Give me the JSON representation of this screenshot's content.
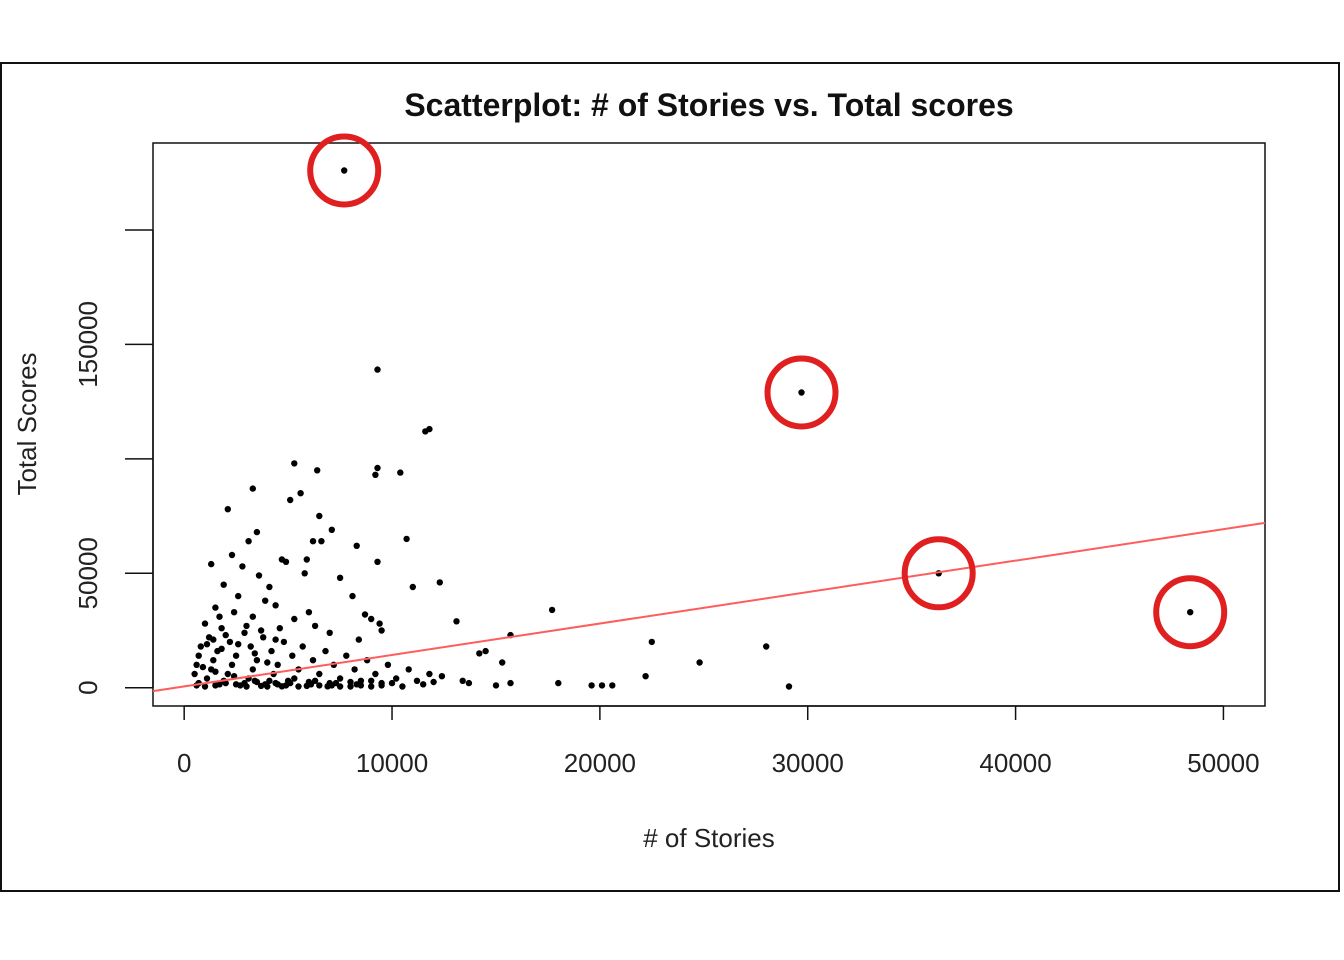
{
  "chart_data": {
    "type": "scatter",
    "title": "Scatterplot: # of Stories vs. Total scores",
    "xlabel": "# of Stories",
    "ylabel": "Total Scores",
    "xlim": [
      -1500,
      52000
    ],
    "ylim": [
      -8000,
      238000
    ],
    "x_ticks": [
      0,
      10000,
      20000,
      30000,
      40000,
      50000
    ],
    "y_ticks": [
      0,
      50000,
      100000,
      150000,
      200000
    ],
    "y_tick_labels": [
      "0",
      "50000",
      "",
      "150000",
      ""
    ],
    "grid": false,
    "colors": {
      "points": "#000000",
      "fit_line": "#ff5c5c",
      "highlight": "#e02020"
    },
    "fit_line": {
      "x": [
        -1500,
        52000
      ],
      "y": [
        -1500,
        72000
      ]
    },
    "highlighted_points": [
      {
        "x": 7700,
        "y": 226000
      },
      {
        "x": 29700,
        "y": 129000
      },
      {
        "x": 36300,
        "y": 50000
      },
      {
        "x": 48400,
        "y": 33000
      }
    ],
    "series": [
      {
        "values": [
          [
            7700,
            226000
          ],
          [
            29700,
            129000
          ],
          [
            36300,
            50000
          ],
          [
            48400,
            33000
          ],
          [
            9300,
            139000
          ],
          [
            11600,
            112000
          ],
          [
            11800,
            113000
          ],
          [
            5300,
            98000
          ],
          [
            6400,
            95000
          ],
          [
            9200,
            93000
          ],
          [
            9300,
            96000
          ],
          [
            10400,
            94000
          ],
          [
            3300,
            87000
          ],
          [
            5100,
            82000
          ],
          [
            5600,
            85000
          ],
          [
            2100,
            78000
          ],
          [
            6500,
            75000
          ],
          [
            7100,
            69000
          ],
          [
            3500,
            68000
          ],
          [
            3100,
            64000
          ],
          [
            6200,
            64000
          ],
          [
            6600,
            64000
          ],
          [
            8300,
            62000
          ],
          [
            10700,
            65000
          ],
          [
            4700,
            56000
          ],
          [
            4900,
            55000
          ],
          [
            9300,
            55000
          ],
          [
            1300,
            54000
          ],
          [
            2800,
            53000
          ],
          [
            5900,
            56000
          ],
          [
            11000,
            44000
          ],
          [
            12300,
            46000
          ],
          [
            17700,
            34000
          ],
          [
            13100,
            29000
          ],
          [
            15700,
            23000
          ],
          [
            22500,
            20000
          ],
          [
            28000,
            18000
          ],
          [
            14200,
            15000
          ],
          [
            14500,
            16000
          ],
          [
            15300,
            11000
          ],
          [
            24800,
            11000
          ],
          [
            22200,
            5000
          ],
          [
            18000,
            2000
          ],
          [
            19600,
            1000
          ],
          [
            20100,
            1000
          ],
          [
            20600,
            1000
          ],
          [
            29100,
            500
          ],
          [
            15700,
            2000
          ],
          [
            15000,
            1000
          ],
          [
            13400,
            3000
          ],
          [
            13700,
            2000
          ],
          [
            8700,
            32000
          ],
          [
            9000,
            30000
          ],
          [
            9400,
            28000
          ],
          [
            9500,
            25000
          ],
          [
            2600,
            40000
          ],
          [
            3900,
            38000
          ],
          [
            4400,
            36000
          ],
          [
            1500,
            35000
          ],
          [
            2400,
            33000
          ],
          [
            3300,
            31000
          ],
          [
            5300,
            30000
          ],
          [
            6300,
            27000
          ],
          [
            7000,
            24000
          ],
          [
            1000,
            28000
          ],
          [
            1800,
            26000
          ],
          [
            2900,
            24000
          ],
          [
            3800,
            22000
          ],
          [
            4800,
            20000
          ],
          [
            5700,
            18000
          ],
          [
            6800,
            16000
          ],
          [
            7800,
            14000
          ],
          [
            8800,
            12000
          ],
          [
            9800,
            10000
          ],
          [
            10800,
            8000
          ],
          [
            11800,
            6000
          ],
          [
            12400,
            5000
          ],
          [
            1200,
            22000
          ],
          [
            2200,
            20000
          ],
          [
            3200,
            18000
          ],
          [
            4200,
            16000
          ],
          [
            5200,
            14000
          ],
          [
            6200,
            12000
          ],
          [
            7200,
            10000
          ],
          [
            8200,
            8000
          ],
          [
            9200,
            6000
          ],
          [
            10200,
            4000
          ],
          [
            11200,
            3000
          ],
          [
            800,
            18000
          ],
          [
            1600,
            16000
          ],
          [
            2500,
            14000
          ],
          [
            3500,
            12000
          ],
          [
            4500,
            10000
          ],
          [
            5500,
            8000
          ],
          [
            6500,
            6000
          ],
          [
            7500,
            4000
          ],
          [
            8500,
            3000
          ],
          [
            9500,
            2000
          ],
          [
            700,
            14000
          ],
          [
            1400,
            12000
          ],
          [
            2300,
            10000
          ],
          [
            3300,
            8000
          ],
          [
            4300,
            6000
          ],
          [
            5300,
            4000
          ],
          [
            6300,
            3000
          ],
          [
            7300,
            2000
          ],
          [
            8300,
            1500
          ],
          [
            600,
            10000
          ],
          [
            1300,
            8000
          ],
          [
            2100,
            6000
          ],
          [
            3100,
            4000
          ],
          [
            4100,
            3000
          ],
          [
            5100,
            2000
          ],
          [
            6100,
            1500
          ],
          [
            7100,
            1000
          ],
          [
            500,
            6000
          ],
          [
            1100,
            4000
          ],
          [
            1900,
            3000
          ],
          [
            2900,
            2000
          ],
          [
            3900,
            1500
          ],
          [
            4900,
            1000
          ],
          [
            5900,
            800
          ],
          [
            6900,
            600
          ],
          [
            700,
            2000
          ],
          [
            1700,
            1500
          ],
          [
            2700,
            1000
          ],
          [
            3700,
            800
          ],
          [
            4700,
            600
          ],
          [
            10500,
            500
          ],
          [
            11500,
            1500
          ],
          [
            12000,
            2500
          ],
          [
            9000,
            500
          ],
          [
            8000,
            500
          ],
          [
            1900,
            45000
          ],
          [
            2300,
            58000
          ],
          [
            3600,
            49000
          ],
          [
            4100,
            44000
          ],
          [
            5800,
            50000
          ],
          [
            7500,
            48000
          ],
          [
            8100,
            40000
          ],
          [
            1700,
            31000
          ],
          [
            4600,
            26000
          ],
          [
            6000,
            33000
          ],
          [
            8400,
            21000
          ],
          [
            1100,
            19000
          ],
          [
            1400,
            21000
          ],
          [
            1800,
            17000
          ],
          [
            2000,
            23000
          ],
          [
            2600,
            19000
          ],
          [
            3000,
            27000
          ],
          [
            3400,
            15000
          ],
          [
            3700,
            25000
          ],
          [
            4000,
            11000
          ],
          [
            4400,
            21000
          ],
          [
            900,
            9000
          ],
          [
            1500,
            7000
          ],
          [
            2400,
            5000
          ],
          [
            3400,
            3000
          ],
          [
            4400,
            2000
          ],
          [
            600,
            1000
          ],
          [
            1000,
            500
          ],
          [
            1500,
            1000
          ],
          [
            2000,
            2000
          ],
          [
            2500,
            1500
          ],
          [
            3000,
            500
          ],
          [
            3500,
            2500
          ],
          [
            4000,
            500
          ],
          [
            4500,
            1500
          ],
          [
            5000,
            3000
          ],
          [
            5500,
            500
          ],
          [
            6000,
            2500
          ],
          [
            6500,
            1000
          ],
          [
            7000,
            2000
          ],
          [
            7500,
            500
          ],
          [
            8000,
            2500
          ],
          [
            8500,
            1000
          ],
          [
            9000,
            3000
          ],
          [
            9500,
            1000
          ],
          [
            10000,
            2000
          ]
        ]
      }
    ]
  }
}
